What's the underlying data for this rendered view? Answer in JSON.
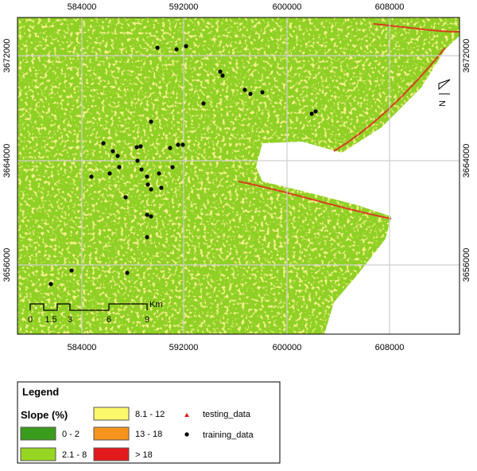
{
  "map": {
    "x_ticks": [
      "584000",
      "592000",
      "600000",
      "608000"
    ],
    "y_ticks": [
      "3672000",
      "3664000",
      "3656000"
    ],
    "scale_bar": {
      "labels": [
        "0",
        "1.5",
        "3",
        "6",
        "9"
      ],
      "unit": "Km"
    },
    "north": "N"
  },
  "legend": {
    "title": "Legend",
    "slope_title": "Slope (%)",
    "classes": [
      {
        "label": "0 - 2",
        "color": "#3a9c1c"
      },
      {
        "label": "2.1 - 8",
        "color": "#97d523"
      },
      {
        "label": "8.1 - 12",
        "color": "#fcf86b"
      },
      {
        "label": "13 - 18",
        "color": "#f7941d"
      },
      {
        "label": "> 18",
        "color": "#e31a1c"
      }
    ],
    "points": [
      {
        "label": "testing_data"
      },
      {
        "label": "training_data"
      }
    ]
  }
}
